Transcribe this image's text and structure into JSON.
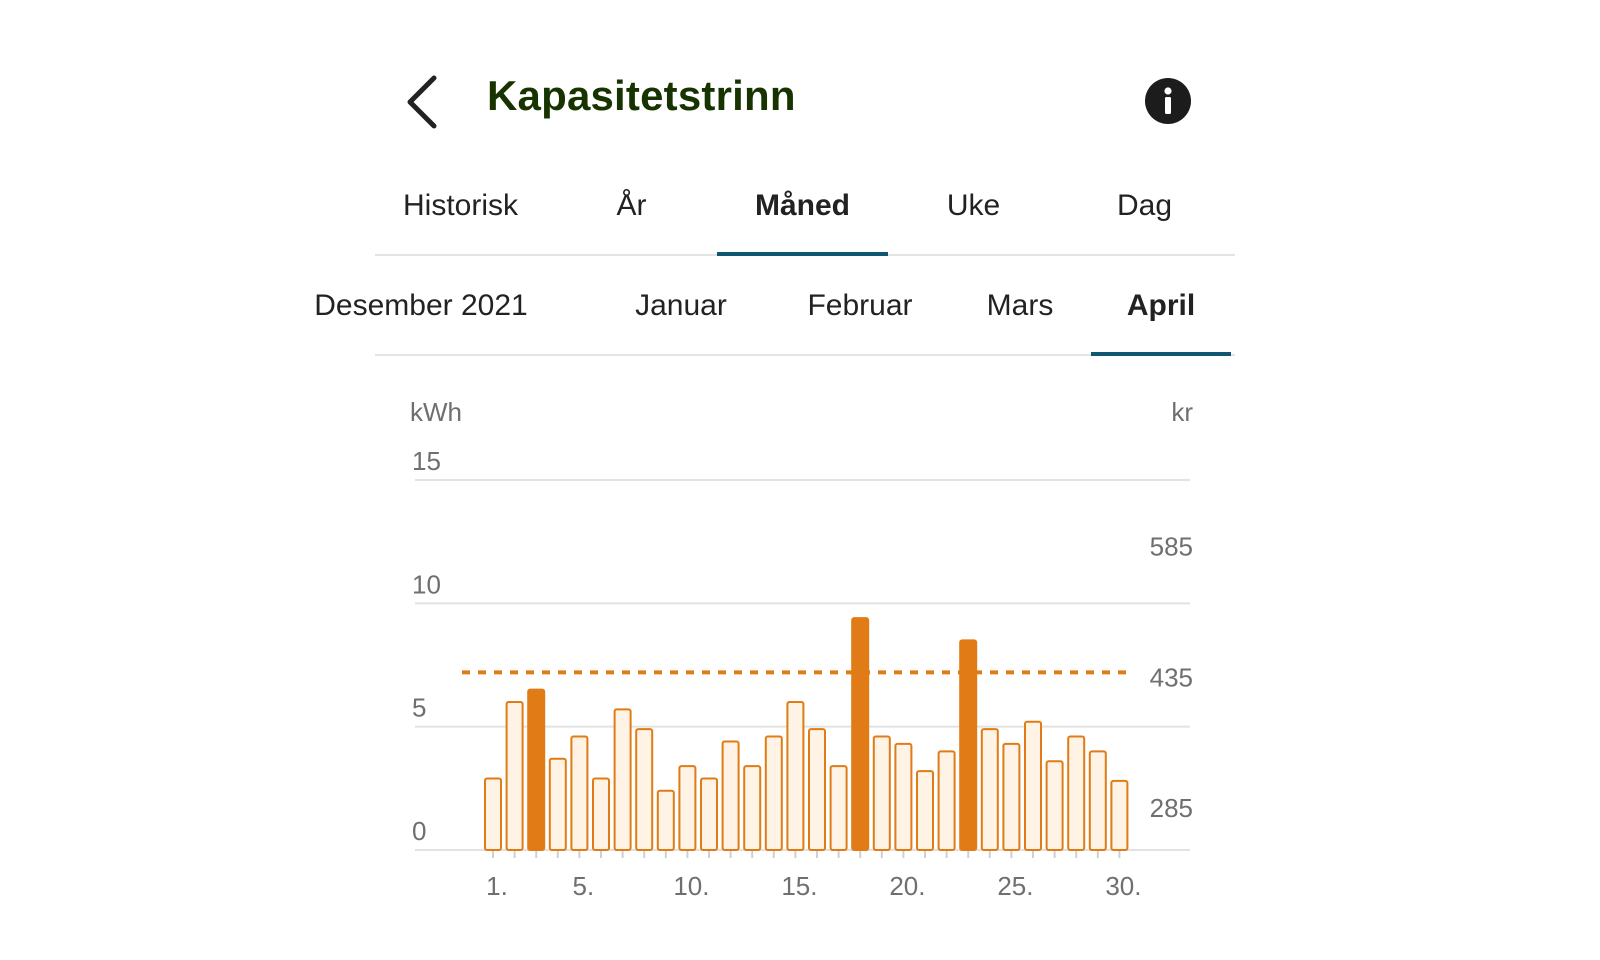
{
  "header": {
    "title": "Kapasitetstrinn",
    "back_icon": "chevron-left-icon",
    "info_icon": "info-icon"
  },
  "period_tabs": [
    {
      "label": "Historisk",
      "active": false
    },
    {
      "label": "År",
      "active": false
    },
    {
      "label": "Måned",
      "active": true
    },
    {
      "label": "Uke",
      "active": false
    },
    {
      "label": "Dag",
      "active": false
    }
  ],
  "month_tabs": [
    {
      "label": "Desember 2021",
      "active": false
    },
    {
      "label": "Januar",
      "active": false
    },
    {
      "label": "Februar",
      "active": false
    },
    {
      "label": "Mars",
      "active": false
    },
    {
      "label": "April",
      "active": true
    }
  ],
  "colors": {
    "title": "#163300",
    "accent": "#0f5670",
    "bar_stroke": "#e07b16",
    "bar_fill": "#fef3e4",
    "bar_highlight": "#e07b16",
    "grid": "#e2e2e2"
  },
  "chart_data": {
    "type": "bar",
    "ylabel_left": "kWh",
    "ylabel_right": "kr",
    "ylim": [
      0,
      15
    ],
    "left_ticks": [
      "15",
      "10",
      "5",
      "0"
    ],
    "left_tick_values": [
      15,
      10,
      5,
      0
    ],
    "right_ticks": [
      "585",
      "435",
      "285"
    ],
    "right_tick_values": [
      12.3,
      7.0,
      1.7
    ],
    "x_ticks": [
      "1.",
      "5.",
      "10.",
      "15.",
      "20.",
      "25.",
      "30."
    ],
    "x_tick_days": [
      1,
      5,
      10,
      15,
      20,
      25,
      30
    ],
    "threshold": 7.2,
    "days": [
      1,
      2,
      3,
      4,
      5,
      6,
      7,
      8,
      9,
      10,
      11,
      12,
      13,
      14,
      15,
      16,
      17,
      18,
      19,
      20,
      21,
      22,
      23,
      24,
      25,
      26,
      27,
      28,
      29,
      30
    ],
    "values": [
      2.9,
      6.0,
      6.5,
      3.7,
      4.6,
      2.9,
      5.7,
      4.9,
      2.4,
      3.4,
      2.9,
      4.4,
      3.4,
      4.6,
      6.0,
      4.9,
      3.4,
      9.4,
      4.6,
      4.3,
      3.2,
      4.0,
      8.5,
      4.9,
      4.3,
      5.2,
      3.6,
      4.6,
      4.0,
      2.8
    ],
    "highlighted_days": [
      3,
      18,
      23
    ],
    "grid": true
  }
}
